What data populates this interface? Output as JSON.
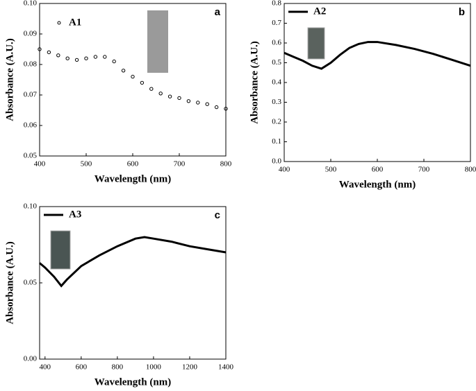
{
  "chart_data": [
    {
      "type": "scatter",
      "panel_label": "a",
      "xlabel": "Wavelength (nm)",
      "ylabel": "Absorbance (A.U.)",
      "xlim": [
        400,
        800
      ],
      "xticks": [
        400,
        500,
        600,
        700,
        800
      ],
      "ylim": [
        0.05,
        0.1
      ],
      "yticks": [
        0.05,
        0.06,
        0.07,
        0.08,
        0.09,
        {
          "value": 0.1,
          "label": "0.10"
        }
      ],
      "series": [
        {
          "name": "A1",
          "color": "#000000",
          "x": [
            400,
            420,
            440,
            460,
            480,
            500,
            520,
            540,
            560,
            580,
            600,
            620,
            640,
            660,
            680,
            700,
            720,
            740,
            760,
            780,
            800
          ],
          "values": [
            0.085,
            0.084,
            0.083,
            0.082,
            0.0815,
            0.082,
            0.0825,
            0.0825,
            0.081,
            0.078,
            0.076,
            0.074,
            0.072,
            0.0705,
            0.0695,
            0.069,
            0.068,
            0.0675,
            0.067,
            0.066,
            0.0655
          ]
        }
      ]
    },
    {
      "type": "line",
      "panel_label": "b",
      "xlabel": "Wavelength (nm)",
      "ylabel": "Absorbance (A.U.)",
      "xlim": [
        400,
        800
      ],
      "xticks": [
        400,
        500,
        600,
        700,
        800
      ],
      "ylim": [
        0,
        0.8
      ],
      "yticks": [
        {
          "value": 0,
          "label": "0.0"
        },
        0.1,
        0.2,
        0.3,
        0.4,
        0.5,
        0.6,
        0.7,
        0.8
      ],
      "series": [
        {
          "name": "A2",
          "color": "#000000",
          "x": [
            400,
            420,
            440,
            460,
            480,
            500,
            520,
            540,
            560,
            580,
            600,
            640,
            680,
            720,
            760,
            800
          ],
          "values": [
            0.55,
            0.53,
            0.51,
            0.485,
            0.47,
            0.5,
            0.54,
            0.575,
            0.595,
            0.605,
            0.605,
            0.59,
            0.57,
            0.545,
            0.515,
            0.485
          ]
        }
      ]
    },
    {
      "type": "line",
      "panel_label": "c",
      "xlabel": "Wavelength (nm)",
      "ylabel": "Absorbance (A.U.)",
      "xlim": [
        370,
        1400
      ],
      "xticks": [
        400,
        600,
        800,
        1000,
        1200,
        1400
      ],
      "ylim": [
        0,
        0.1
      ],
      "yticks": [
        {
          "value": 0,
          "label": "0.00"
        },
        0.05,
        {
          "value": 0.1,
          "label": "0.10"
        }
      ],
      "series": [
        {
          "name": "A3",
          "color": "#000000",
          "x": [
            370,
            400,
            450,
            490,
            520,
            600,
            700,
            800,
            900,
            950,
            1000,
            1100,
            1200,
            1300,
            1400
          ],
          "values": [
            0.063,
            0.06,
            0.054,
            0.048,
            0.052,
            0.061,
            0.068,
            0.074,
            0.079,
            0.08,
            0.079,
            0.077,
            0.074,
            0.072,
            0.07
          ]
        }
      ]
    }
  ]
}
